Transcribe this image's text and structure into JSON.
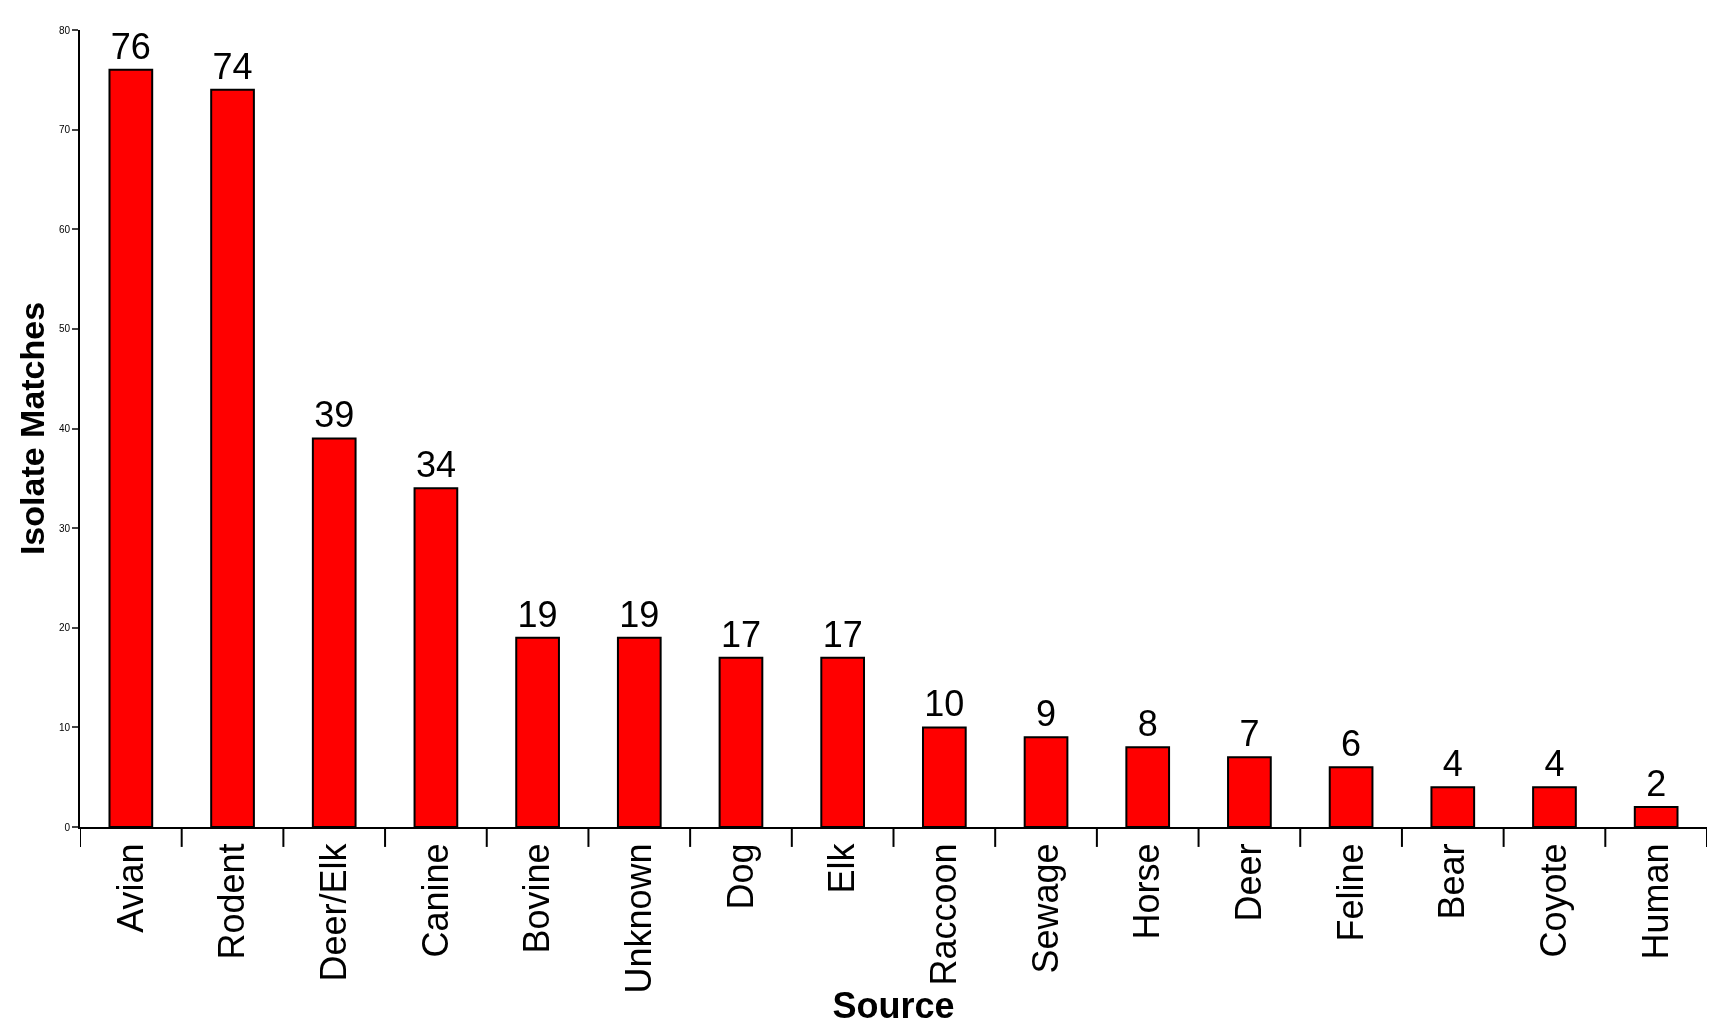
{
  "chart_data": {
    "type": "bar",
    "xlabel": "Source",
    "ylabel": "Isolate Matches",
    "categories": [
      "Avian",
      "Rodent",
      "Deer/Elk",
      "Canine",
      "Bovine",
      "Unknown",
      "Dog",
      "Elk",
      "Raccoon",
      "Sewage",
      "Horse",
      "Deer",
      "Feline",
      "Bear",
      "Coyote",
      "Human"
    ],
    "values": [
      76,
      74,
      39,
      34,
      19,
      19,
      17,
      17,
      10,
      9,
      8,
      7,
      6,
      4,
      4,
      2
    ],
    "color": "#ff0000",
    "ylim": [
      0,
      80
    ],
    "yticks": [
      0,
      10,
      20,
      30,
      40,
      50,
      60,
      70,
      80
    ],
    "data_labels": true
  }
}
